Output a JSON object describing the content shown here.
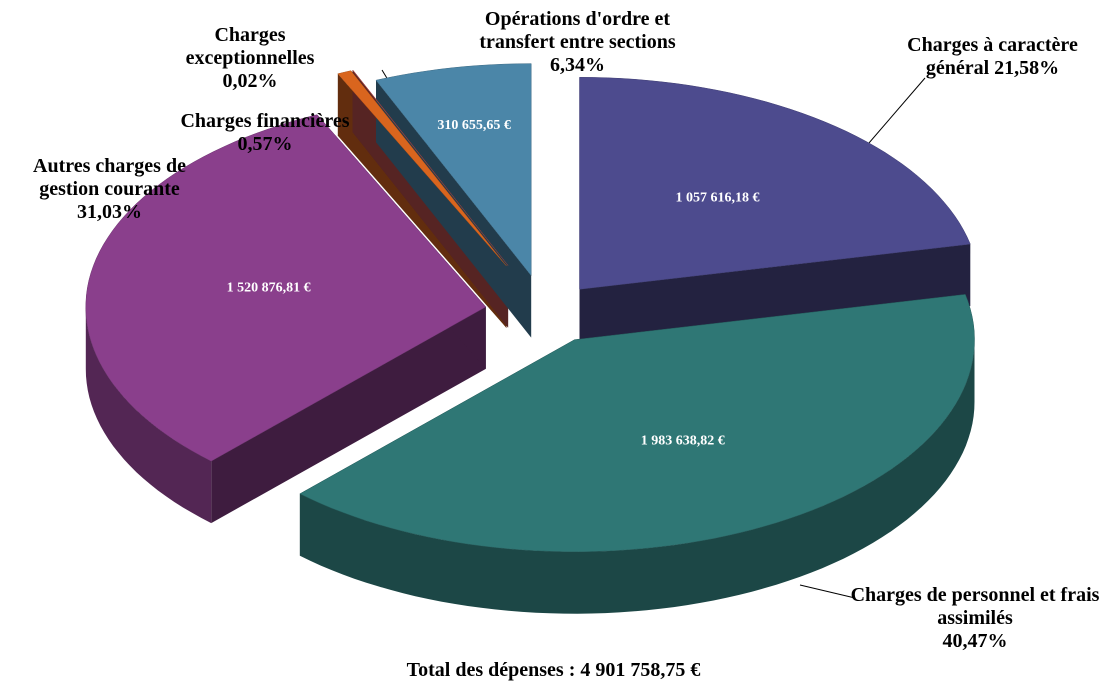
{
  "chart_data": {
    "type": "pie",
    "categories": [
      "Charges à caractère général",
      "Charges de personnel et frais assimilés",
      "Autres charges de gestion courante",
      "Charges financières",
      "Charges exceptionnelles",
      "Opérations d'ordre et transfert entre sections"
    ],
    "values": [
      21.58,
      40.47,
      31.03,
      0.57,
      0.02,
      6.34
    ],
    "value_labels": [
      "21,58%",
      "40,47%",
      "31,03%",
      "0,57%",
      "0,02%",
      "6,34%"
    ],
    "amount_labels": [
      "1 057 616,18 €",
      "1 983 638,82 €",
      "1 520 876,81 €",
      null,
      null,
      "310 655,65 €"
    ],
    "colors": [
      "#4d4b8e",
      "#2f7775",
      "#8a3f8c",
      "#d9651e",
      "#c0504d",
      "#4b86a8"
    ],
    "total_label": "Total des dépenses : 4 901 758,75 €"
  }
}
